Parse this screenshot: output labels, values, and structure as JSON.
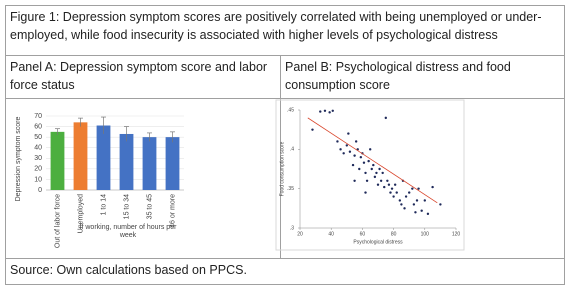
{
  "caption": "Figure 1: Depression symptom scores are positively correlated with being unemployed or under-employed, while food insecurity is associated with higher levels of psychological distress",
  "panel_a_title": "Panel A: Depression symptom score and labor force status",
  "panel_b_title": "Panel B: Psychological distress and food consumption score",
  "source": "Source: Own calculations based on PPCS.",
  "chart_data": [
    {
      "type": "bar",
      "categories": [
        "Out of labor force",
        "Unemployed",
        "1 to 14",
        "15 to 34",
        "35 to 45",
        "46 or more"
      ],
      "values": [
        55,
        64,
        61,
        53,
        50,
        50
      ],
      "errors": [
        3,
        4,
        8,
        7,
        4,
        5
      ],
      "colors": [
        "#4caf3f",
        "#ed7d31",
        "#4472c4",
        "#4472c4",
        "#4472c4",
        "#4472c4"
      ],
      "ylabel": "Depression symptom score",
      "xlabel": "If working, number of hours per week",
      "ylim": [
        0,
        70
      ],
      "yticks": [
        0,
        10,
        20,
        30,
        40,
        50,
        60,
        70
      ],
      "grid": true
    },
    {
      "type": "scatter",
      "xlabel": "Psychological distress",
      "ylabel": "Food consumption score",
      "color": "#1f2a5a",
      "x": [
        28,
        33,
        36,
        39,
        41,
        44,
        46,
        48,
        50,
        51,
        52,
        54,
        55,
        56,
        57,
        58,
        59,
        60,
        61,
        62,
        63,
        64,
        65,
        66,
        67,
        68,
        69,
        70,
        71,
        72,
        73,
        74,
        75,
        76,
        77,
        78,
        79,
        80,
        81,
        82,
        84,
        85,
        86,
        87,
        88,
        90,
        92,
        93,
        94,
        95,
        96,
        98,
        100,
        102,
        105,
        110,
        62,
        55
      ],
      "y": [
        0.425,
        0.448,
        0.449,
        0.447,
        0.449,
        0.41,
        0.4,
        0.395,
        0.405,
        0.42,
        0.397,
        0.38,
        0.392,
        0.41,
        0.4,
        0.375,
        0.39,
        0.395,
        0.383,
        0.37,
        0.36,
        0.385,
        0.4,
        0.375,
        0.38,
        0.365,
        0.37,
        0.355,
        0.375,
        0.36,
        0.37,
        0.352,
        0.44,
        0.36,
        0.355,
        0.345,
        0.35,
        0.34,
        0.355,
        0.345,
        0.335,
        0.33,
        0.36,
        0.325,
        0.34,
        0.345,
        0.35,
        0.33,
        0.32,
        0.335,
        0.35,
        0.322,
        0.335,
        0.318,
        0.352,
        0.33,
        0.345,
        0.36
      ],
      "trendline": {
        "color": "#d9452b",
        "x": [
          25,
          108
        ],
        "y": [
          0.44,
          0.332
        ]
      },
      "xlim": [
        20,
        120
      ],
      "xticks": [
        20,
        40,
        60,
        80,
        100,
        120
      ],
      "ylim": [
        0.3,
        0.45
      ],
      "yticks": [
        {
          "value": 0.3,
          "label": ".3"
        },
        {
          "value": 0.35,
          "label": ".35"
        },
        {
          "value": 0.4,
          "label": ".4"
        },
        {
          "value": 0.45,
          "label": ".45"
        }
      ]
    }
  ]
}
